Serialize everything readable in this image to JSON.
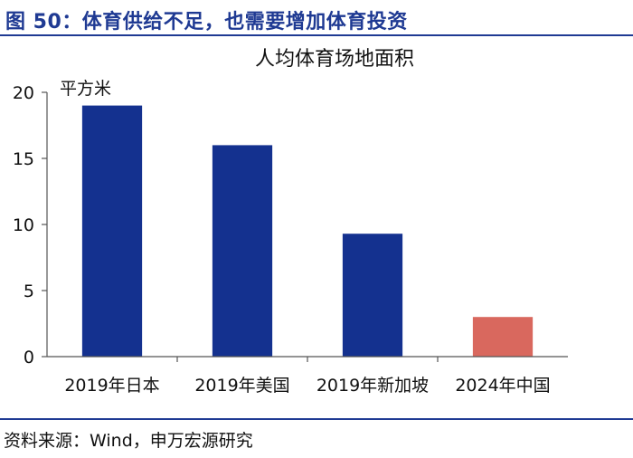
{
  "figure": {
    "title": "图 50：体育供给不足，也需要增加体育投资",
    "source": "资料来源：Wind，申万宏源研究"
  },
  "chart_data": {
    "type": "bar",
    "title": "人均体育场地面积",
    "unit_label": "平方米",
    "xlabel": "",
    "ylabel": "",
    "categories": [
      "2019年日本",
      "2019年美国",
      "2019年新加坡",
      "2024年中国"
    ],
    "values": [
      19.0,
      16.0,
      9.3,
      3.0
    ],
    "bar_colors": [
      "#14318f",
      "#14318f",
      "#14318f",
      "#d9685e"
    ],
    "ylim": [
      0,
      20
    ],
    "yticks": [
      0,
      5,
      10,
      15,
      20
    ],
    "grid": false,
    "legend": "none"
  },
  "colors": {
    "accent": "#1f3a93",
    "bar_primary": "#14318f",
    "bar_highlight": "#d9685e"
  }
}
